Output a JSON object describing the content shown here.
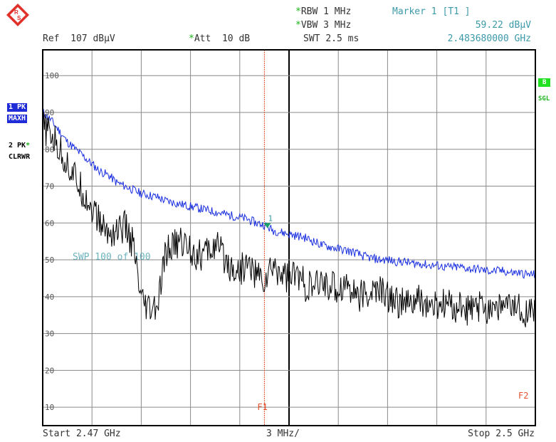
{
  "header": {
    "rbw_label": "RBW",
    "rbw_value": "1 MHz",
    "vbw_label": "VBW",
    "vbw_value": "3 MHz",
    "swt_label": "SWT",
    "swt_value": "2.5 ms",
    "ref_label": "Ref",
    "ref_value": "107 dBµV",
    "att_label": "Att",
    "att_value": "10 dB",
    "marker_title": "Marker 1 [T1 ]",
    "marker_level": "59.22 dBµV",
    "marker_freq": "2.483680000 GHz",
    "star": "*"
  },
  "left_labels": {
    "trace1_a": "1 PK",
    "trace1_b": "MAXH",
    "trace2_a": "2 PK",
    "trace2_b": "CLRWR"
  },
  "right_labels": {
    "b": "B",
    "sgl": "SGL"
  },
  "footer": {
    "start": "Start 2.47 GHz",
    "div": "3 MHz/",
    "stop": "Stop 2.5 GHz"
  },
  "overlay": {
    "sweep_text": "SWP 100 of 100"
  },
  "colors": {
    "maxh": "#1a2fe0",
    "clrwr": "#000000",
    "grid": "#8a8a8a",
    "marker_line": "#e05030",
    "teal": "#3c9aa8"
  },
  "chart_data": {
    "type": "line",
    "x_start_ghz": 2.47,
    "x_stop_ghz": 2.5,
    "ylim": [
      5,
      107
    ],
    "y_ticks": [
      100,
      90,
      80,
      70,
      60,
      50,
      40,
      30,
      20,
      10
    ],
    "x_divisions": 10,
    "ylabel": "dBµV",
    "grid": true,
    "marker": {
      "label": "1",
      "x_ghz": 2.48368,
      "y": 59.22
    },
    "lines": [
      {
        "label": "F1",
        "x_ghz": 2.4835
      },
      {
        "label": "F2",
        "x_ghz": 2.5
      }
    ],
    "series": [
      {
        "name": "1 PK MAXH",
        "x": [
          2.47,
          2.4705,
          2.471,
          2.4715,
          2.472,
          2.4725,
          2.473,
          2.4735,
          2.474,
          2.4745,
          2.475,
          2.4755,
          2.476,
          2.4765,
          2.477,
          2.4775,
          2.478,
          2.4785,
          2.479,
          2.4795,
          2.48,
          2.4805,
          2.481,
          2.4815,
          2.482,
          2.4825,
          2.483,
          2.4835,
          2.484,
          2.4845,
          2.485,
          2.4855,
          2.486,
          2.4865,
          2.487,
          2.4875,
          2.488,
          2.4885,
          2.489,
          2.4895,
          2.49,
          2.4905,
          2.491,
          2.4915,
          2.492,
          2.4925,
          2.493,
          2.4935,
          2.494,
          2.4945,
          2.495,
          2.4955,
          2.496,
          2.4965,
          2.497,
          2.4975,
          2.498,
          2.4985,
          2.499,
          2.4995,
          2.5
        ],
        "y": [
          90,
          88,
          85,
          82,
          80,
          78,
          76,
          74,
          73,
          71,
          70,
          69,
          68,
          67.5,
          67,
          66,
          65.5,
          65,
          64.5,
          64,
          63.5,
          63,
          62.5,
          62,
          61.5,
          61,
          60,
          59.5,
          58,
          57.5,
          57,
          56.5,
          56,
          55,
          54,
          53.5,
          53,
          52.5,
          52,
          51,
          50.5,
          50,
          50,
          49.5,
          49.5,
          49,
          49,
          48.5,
          48.5,
          48,
          48,
          48,
          47.5,
          47.5,
          47,
          47,
          47,
          46.5,
          46.5,
          46,
          46
        ]
      },
      {
        "name": "2 PK CLRWR",
        "x": [
          2.47,
          2.4705,
          2.471,
          2.4715,
          2.472,
          2.4725,
          2.473,
          2.4735,
          2.474,
          2.4745,
          2.475,
          2.4755,
          2.476,
          2.4765,
          2.477,
          2.4775,
          2.478,
          2.4785,
          2.479,
          2.4795,
          2.48,
          2.4805,
          2.481,
          2.4815,
          2.482,
          2.4825,
          2.483,
          2.4835,
          2.484,
          2.4845,
          2.485,
          2.4855,
          2.486,
          2.4865,
          2.487,
          2.4875,
          2.488,
          2.4885,
          2.489,
          2.4895,
          2.49,
          2.4905,
          2.491,
          2.4915,
          2.492,
          2.4925,
          2.493,
          2.4935,
          2.494,
          2.4945,
          2.495,
          2.4955,
          2.496,
          2.4965,
          2.497,
          2.4975,
          2.498,
          2.4985,
          2.499,
          2.4995,
          2.5
        ],
        "y": [
          86,
          84,
          80,
          76,
          72,
          68,
          64,
          60,
          57,
          58,
          59,
          54,
          38,
          36,
          37,
          52,
          54,
          55,
          53,
          51,
          52,
          54,
          51,
          48,
          47,
          49,
          46,
          44,
          48,
          47,
          45,
          46,
          43,
          42,
          44,
          43,
          42,
          44,
          41,
          40,
          41,
          42,
          40,
          39,
          38,
          38,
          39,
          37,
          37,
          38,
          37,
          37,
          36,
          37,
          37,
          38,
          37,
          37,
          37,
          36,
          36
        ]
      }
    ]
  }
}
